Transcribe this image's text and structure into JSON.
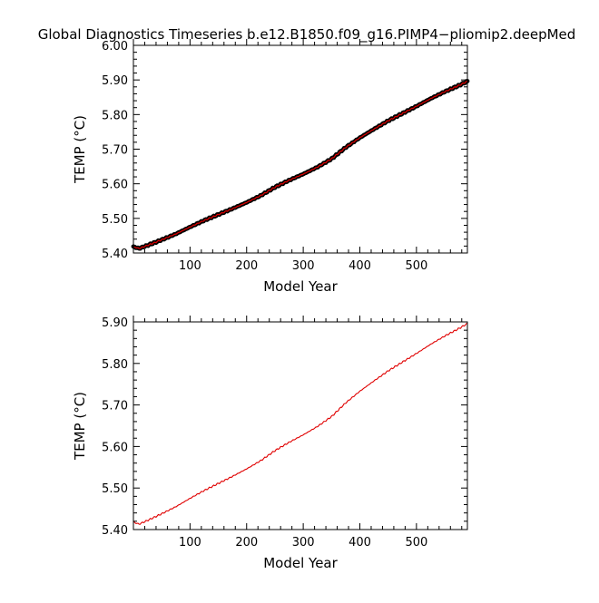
{
  "title": "Global Diagnostics Timeseries b.e12.B1850.f09_g16.PIMP4−pliomip2.deepMed",
  "colors": {
    "line": "#e00000",
    "marker": "#000000",
    "axis": "#000000",
    "background": "#ffffff"
  },
  "chart_data": [
    {
      "type": "line",
      "style": "line-with-markers",
      "xlabel": "Model Year",
      "ylabel": "TEMP (°C)",
      "xlim": [
        0,
        590
      ],
      "ylim": [
        5.4,
        6.0
      ],
      "xticks": [
        100,
        200,
        300,
        400,
        500
      ],
      "xtick_labels": [
        "100",
        "200",
        "300",
        "400",
        "500"
      ],
      "yticks": [
        5.4,
        5.5,
        5.6,
        5.7,
        5.8,
        5.9,
        6.0
      ],
      "ytick_labels": [
        "5.40",
        "5.50",
        "5.60",
        "5.70",
        "5.80",
        "5.90",
        "6.00"
      ],
      "grid": false,
      "series": [
        {
          "x": [
            0,
            10,
            25,
            50,
            75,
            100,
            125,
            150,
            175,
            200,
            225,
            250,
            275,
            300,
            325,
            350,
            375,
            400,
            425,
            450,
            475,
            500,
            525,
            550,
            575,
            590
          ],
          "y": [
            5.418,
            5.413,
            5.422,
            5.438,
            5.455,
            5.475,
            5.494,
            5.511,
            5.528,
            5.546,
            5.566,
            5.59,
            5.61,
            5.628,
            5.648,
            5.672,
            5.705,
            5.733,
            5.758,
            5.782,
            5.803,
            5.824,
            5.846,
            5.866,
            5.884,
            5.896
          ]
        }
      ]
    },
    {
      "type": "line",
      "style": "line",
      "xlabel": "Model Year",
      "ylabel": "TEMP (°C)",
      "xlim": [
        0,
        590
      ],
      "ylim": [
        5.4,
        5.9
      ],
      "xticks": [
        100,
        200,
        300,
        400,
        500
      ],
      "xtick_labels": [
        "100",
        "200",
        "300",
        "400",
        "500"
      ],
      "yticks": [
        5.4,
        5.5,
        5.6,
        5.7,
        5.8,
        5.9
      ],
      "ytick_labels": [
        "5.40",
        "5.50",
        "5.60",
        "5.70",
        "5.80",
        "5.90"
      ],
      "grid": false,
      "series": [
        {
          "x": [
            0,
            10,
            25,
            50,
            75,
            100,
            125,
            150,
            175,
            200,
            225,
            250,
            275,
            300,
            325,
            350,
            375,
            400,
            425,
            450,
            475,
            500,
            525,
            550,
            575,
            590
          ],
          "y": [
            5.418,
            5.413,
            5.422,
            5.438,
            5.455,
            5.475,
            5.494,
            5.511,
            5.528,
            5.546,
            5.566,
            5.59,
            5.61,
            5.628,
            5.648,
            5.672,
            5.705,
            5.733,
            5.758,
            5.782,
            5.803,
            5.824,
            5.846,
            5.866,
            5.884,
            5.896
          ]
        }
      ]
    }
  ]
}
